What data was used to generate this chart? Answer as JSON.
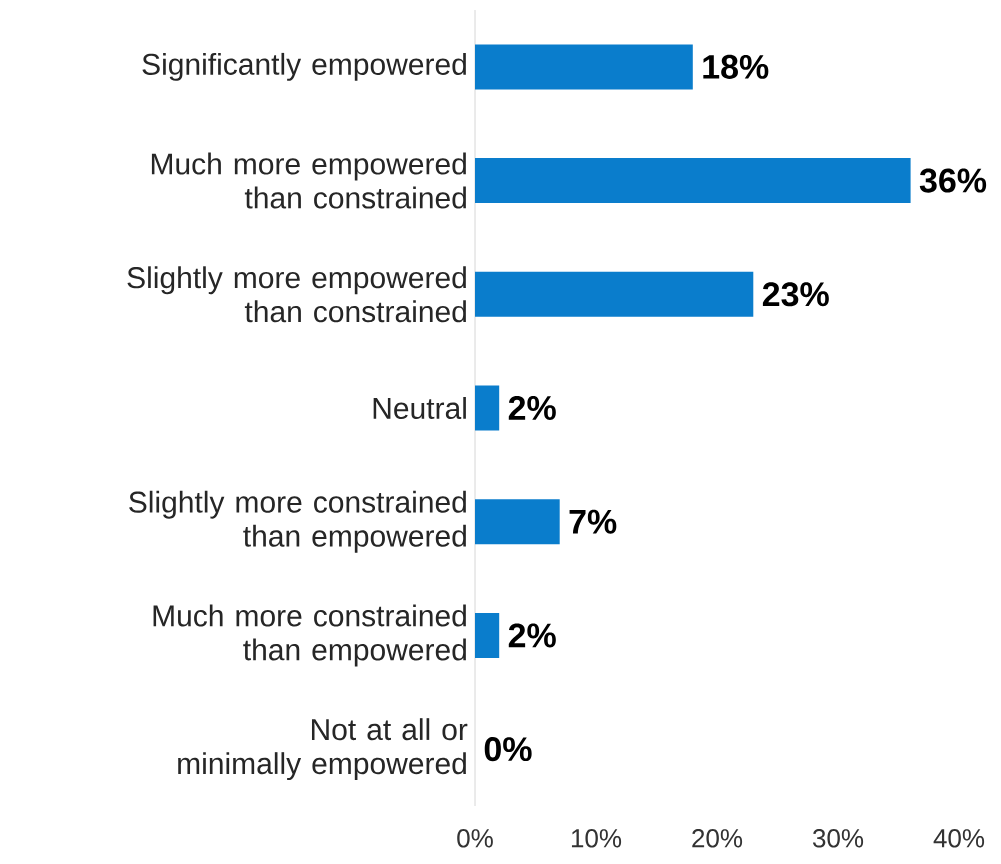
{
  "chart_data": {
    "type": "bar",
    "orientation": "horizontal",
    "categories": [
      "Significantly empowered",
      "Much more empowered than constrained",
      "Slightly more empowered than constrained",
      "Neutral",
      "Slightly more constrained than empowered",
      "Much more constrained than empowered",
      "Not at all or minimally empowered"
    ],
    "values": [
      18,
      36,
      23,
      2,
      7,
      2,
      0
    ],
    "value_labels": [
      "18%",
      "36%",
      "23%",
      "2%",
      "7%",
      "2%",
      "0%"
    ],
    "color": "#0a7dcc",
    "xlim": [
      0,
      40
    ],
    "xticks": [
      {
        "value": 0,
        "label": "0%"
      },
      {
        "value": 10,
        "label": "10%"
      },
      {
        "value": 20,
        "label": "20%"
      },
      {
        "value": 30,
        "label": "30%"
      },
      {
        "value": 40,
        "label": "40%"
      }
    ]
  }
}
